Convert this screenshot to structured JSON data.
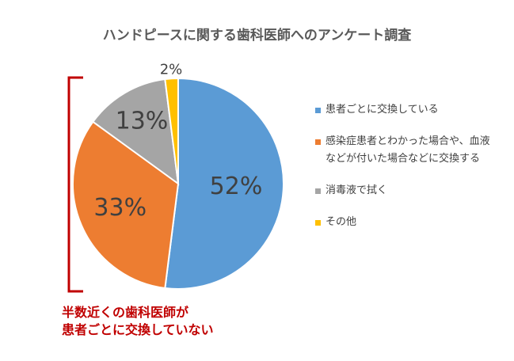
{
  "chart_data": {
    "type": "pie",
    "title": "ハンドピースに関する歯科医師へのアンケート調査",
    "slices": [
      {
        "label": "患者ごとに交換している",
        "value": 52,
        "display": "52%",
        "color": "#5b9bd5"
      },
      {
        "label": "感染症患者とわかった場合や、血液などが付いた場合などに交換する",
        "value": 33,
        "display": "33%",
        "color": "#ed7d31"
      },
      {
        "label": "消毒液で拭く",
        "value": 13,
        "display": "13%",
        "color": "#a5a5a5"
      },
      {
        "label": "その他",
        "value": 2,
        "display": "2%",
        "color": "#ffc000"
      }
    ],
    "legend_position": "right"
  },
  "legend": {
    "items": [
      {
        "lines": [
          "患者ごとに交換している"
        ]
      },
      {
        "lines": [
          "感染症患者とわかった場合や、血液",
          "などが付いた場合などに交換する"
        ]
      },
      {
        "lines": [
          "消毒液で拭く"
        ]
      },
      {
        "lines": [
          "その他"
        ]
      }
    ]
  },
  "annotation": {
    "line1": "半数近くの歯科医師が",
    "line2": "患者ごとに交換していない",
    "color": "#c00000"
  }
}
